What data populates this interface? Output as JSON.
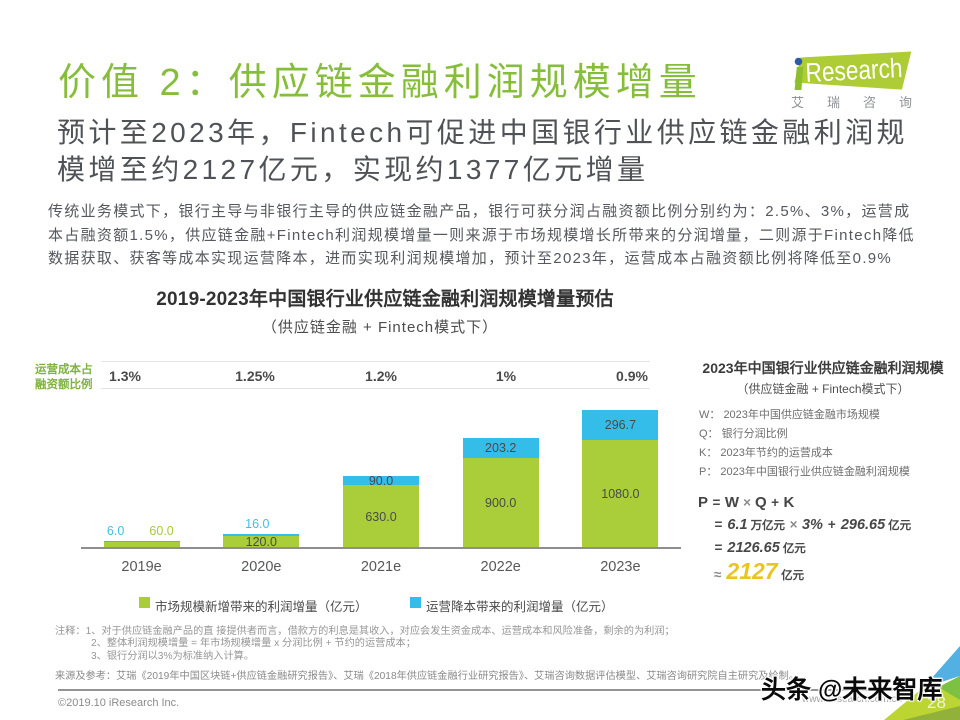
{
  "colors": {
    "brand_green": "#82BB3D",
    "bar_green": "#A9CE3A",
    "bar_blue": "#35BDE9",
    "label_green": "#A6C93C",
    "label_blue": "#3EC0E8",
    "highlight_yellow": "#E9C51D"
  },
  "header": {
    "title": "价值 2：供应链金融利润规模增量",
    "subtitle_lines": [
      "预计至2023年，Fintech可促进中国银行业供应链金融利润规",
      "模增至约2127亿元，实现约1377亿元增量"
    ],
    "logo": {
      "brand_i": "i",
      "brand": "Research",
      "caption": "艾瑞咨询"
    }
  },
  "intro": {
    "lines": [
      "传统业务模式下，银行主导与非银行主导的供应链金融产品，银行可获分润占融资额比例分别约为：2.5%、3%，运营成",
      "本占融资额1.5%，供应链金融+Fintech利润规模增量一则来源于市场规模增长所带来的分润增量，二则源于Fintech降低",
      "数据获取、获客等成本实现运营降本，进而实现利润规模增加，预计至2023年，运营成本占融资额比例将降低至0.9%"
    ]
  },
  "chart_data": {
    "type": "bar",
    "stacked": true,
    "title": "2019-2023年中国银行业供应链金融利润规模增量预估",
    "subtitle": "（供应链金融 + Fintech模式下）",
    "categories": [
      "2019e",
      "2020e",
      "2021e",
      "2022e",
      "2023e"
    ],
    "series": [
      {
        "name": "市场规模新增带来的利润增量（亿元）",
        "color": "#A9CE3A",
        "values": [
          60.0,
          120.0,
          630.0,
          900.0,
          1080.0
        ]
      },
      {
        "name": "运营降本带来的利润增量（亿元）",
        "color": "#35BDE9",
        "values": [
          6.0,
          16.0,
          90.0,
          203.2,
          296.7
        ]
      }
    ],
    "cost_ratio_row": {
      "label_lines": [
        "运营成本占",
        "融资额比例"
      ],
      "values": [
        "1.3%",
        "1.25%",
        "1.2%",
        "1%",
        "0.9%"
      ]
    },
    "ylabel": "",
    "xlabel": "",
    "grid": false,
    "legend_position": "bottom"
  },
  "panel": {
    "title": "2023年中国银行业供应链金融利润规模",
    "subtitle": "（供应链金融 + Fintech模式下）",
    "definitions": [
      "W： 2023年中国供应链金融市场规模",
      "Q： 银行分润比例",
      "K： 2023年节约的运营成本",
      "P： 2023年中国银行业供应链金融利润规模"
    ],
    "formula_lines": [
      {
        "parts": [
          {
            "t": "P",
            "k": "var"
          },
          {
            "t": "=",
            "k": "op"
          },
          {
            "t": "W",
            "k": "var"
          },
          {
            "t": "×",
            "k": "oplight"
          },
          {
            "t": "Q",
            "k": "var"
          },
          {
            "t": "+",
            "k": "op"
          },
          {
            "t": "K",
            "k": "var"
          }
        ]
      },
      {
        "parts": [
          {
            "t": "=",
            "k": "op"
          },
          {
            "t": "6.1",
            "k": "num"
          },
          {
            "t": "万亿元",
            "k": "unit"
          },
          {
            "t": "×",
            "k": "oplight"
          },
          {
            "t": "3%",
            "k": "num"
          },
          {
            "t": "+",
            "k": "op"
          },
          {
            "t": "296.65",
            "k": "num"
          },
          {
            "t": "亿元",
            "k": "unit"
          }
        ]
      },
      {
        "parts": [
          {
            "t": "=",
            "k": "op"
          },
          {
            "t": "2126.65",
            "k": "num"
          },
          {
            "t": "亿元",
            "k": "unit"
          }
        ]
      },
      {
        "parts": [
          {
            "t": "≈",
            "k": "oplight"
          },
          {
            "t": "2127",
            "k": "numxl"
          },
          {
            "t": "亿元",
            "k": "unit"
          }
        ]
      }
    ]
  },
  "notes": {
    "label": "注释：",
    "lines": [
      "1、对于供应链金融产品的直 接提供者而言，借款方的利息是其收入，对应会发生资金成本、运营成本和风险准备，剩余的为利润；",
      "2、整体利润规模增量 = 年市场规模增量 x 分润比例 +  节约的运营成本；",
      "3、银行分润以3%为标准纳入计算。"
    ],
    "source": "来源及参考：艾瑞《2019年中国区块链+供应链金融研究报告》、艾瑞《2018年供应链金融行业研究报告》、艾瑞咨询数据评估模型、艾瑞咨询研究院自主研究及绘制。"
  },
  "footer": {
    "copyright": "©2019.10 iResearch Inc.",
    "website": "www.iresearch.com.cn",
    "page_number": "28"
  },
  "watermark": "头条 @未来智库"
}
